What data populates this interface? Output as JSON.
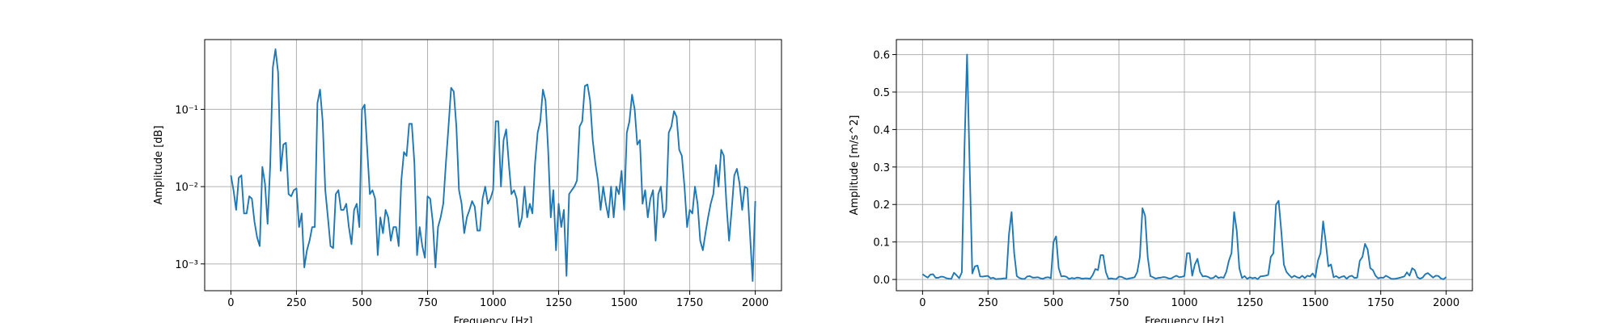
{
  "chart_data": [
    {
      "type": "line",
      "xlabel": "Frequency [Hz]",
      "ylabel": "Amplitude [dB]",
      "log_y": true,
      "grid": true,
      "xlim": [
        -100,
        2100
      ],
      "xticks": [
        0,
        250,
        500,
        750,
        1000,
        1250,
        1500,
        1750,
        2000
      ],
      "ylim": [
        0.00045,
        0.8
      ],
      "yticks": [
        {
          "value": 0.001,
          "label": "10⁻³"
        },
        {
          "value": 0.01,
          "label": "10⁻²"
        },
        {
          "value": 0.1,
          "label": "10⁻¹"
        }
      ],
      "x": [
        0,
        10,
        20,
        30,
        40,
        50,
        60,
        70,
        80,
        90,
        100,
        110,
        120,
        130,
        140,
        150,
        160,
        170,
        180,
        190,
        200,
        210,
        220,
        230,
        240,
        250,
        260,
        270,
        280,
        290,
        300,
        310,
        320,
        330,
        340,
        350,
        360,
        370,
        380,
        390,
        400,
        410,
        420,
        430,
        440,
        450,
        460,
        470,
        480,
        490,
        500,
        510,
        520,
        530,
        540,
        550,
        560,
        570,
        580,
        590,
        600,
        610,
        620,
        630,
        640,
        650,
        660,
        670,
        680,
        690,
        700,
        710,
        720,
        730,
        740,
        750,
        760,
        770,
        780,
        790,
        800,
        810,
        820,
        830,
        840,
        850,
        860,
        870,
        880,
        890,
        900,
        910,
        920,
        930,
        940,
        950,
        960,
        970,
        980,
        990,
        1000,
        1010,
        1020,
        1030,
        1040,
        1050,
        1060,
        1070,
        1080,
        1090,
        1100,
        1110,
        1120,
        1130,
        1140,
        1150,
        1160,
        1170,
        1180,
        1190,
        1200,
        1210,
        1220,
        1230,
        1240,
        1250,
        1260,
        1270,
        1280,
        1290,
        1300,
        1310,
        1320,
        1330,
        1340,
        1350,
        1360,
        1370,
        1380,
        1390,
        1400,
        1410,
        1420,
        1430,
        1440,
        1450,
        1460,
        1470,
        1480,
        1490,
        1500,
        1510,
        1520,
        1530,
        1540,
        1550,
        1560,
        1570,
        1580,
        1590,
        1600,
        1610,
        1620,
        1630,
        1640,
        1650,
        1660,
        1670,
        1680,
        1690,
        1700,
        1710,
        1720,
        1730,
        1740,
        1750,
        1760,
        1770,
        1780,
        1790,
        1800,
        1810,
        1820,
        1830,
        1840,
        1850,
        1860,
        1870,
        1880,
        1890,
        1900,
        1910,
        1920,
        1930,
        1940,
        1950,
        1960,
        1970,
        1980,
        1990,
        2000
      ],
      "series": [
        {
          "color": "#1f77b4",
          "values": [
            0.014,
            0.009,
            0.005,
            0.013,
            0.014,
            0.0045,
            0.0045,
            0.0075,
            0.007,
            0.0035,
            0.0022,
            0.0017,
            0.018,
            0.011,
            0.0033,
            0.019,
            0.35,
            0.6,
            0.3,
            0.016,
            0.035,
            0.037,
            0.008,
            0.0075,
            0.009,
            0.0095,
            0.003,
            0.0045,
            0.0009,
            0.0015,
            0.002,
            0.003,
            0.003,
            0.12,
            0.18,
            0.07,
            0.009,
            0.004,
            0.0017,
            0.0016,
            0.008,
            0.009,
            0.005,
            0.005,
            0.006,
            0.003,
            0.0018,
            0.005,
            0.006,
            0.003,
            0.1,
            0.115,
            0.03,
            0.008,
            0.009,
            0.007,
            0.0013,
            0.004,
            0.0025,
            0.005,
            0.004,
            0.002,
            0.003,
            0.003,
            0.0017,
            0.012,
            0.028,
            0.025,
            0.065,
            0.065,
            0.02,
            0.0013,
            0.003,
            0.0017,
            0.0012,
            0.0075,
            0.007,
            0.0035,
            0.0009,
            0.003,
            0.004,
            0.006,
            0.02,
            0.06,
            0.19,
            0.17,
            0.06,
            0.009,
            0.006,
            0.0025,
            0.004,
            0.005,
            0.0065,
            0.0055,
            0.0027,
            0.0027,
            0.007,
            0.01,
            0.006,
            0.007,
            0.009,
            0.07,
            0.07,
            0.01,
            0.04,
            0.055,
            0.02,
            0.008,
            0.009,
            0.007,
            0.003,
            0.004,
            0.01,
            0.004,
            0.006,
            0.0045,
            0.02,
            0.05,
            0.07,
            0.18,
            0.13,
            0.03,
            0.004,
            0.009,
            0.0015,
            0.006,
            0.003,
            0.005,
            0.0007,
            0.008,
            0.009,
            0.01,
            0.012,
            0.06,
            0.07,
            0.2,
            0.21,
            0.13,
            0.04,
            0.02,
            0.012,
            0.005,
            0.01,
            0.006,
            0.004,
            0.01,
            0.004,
            0.01,
            0.008,
            0.016,
            0.005,
            0.05,
            0.07,
            0.155,
            0.1,
            0.035,
            0.04,
            0.006,
            0.009,
            0.004,
            0.007,
            0.009,
            0.002,
            0.008,
            0.01,
            0.004,
            0.005,
            0.05,
            0.06,
            0.095,
            0.08,
            0.03,
            0.025,
            0.01,
            0.003,
            0.005,
            0.0045,
            0.01,
            0.006,
            0.002,
            0.0015,
            0.0025,
            0.004,
            0.006,
            0.008,
            0.019,
            0.01,
            0.03,
            0.025,
            0.006,
            0.002,
            0.005,
            0.014,
            0.017,
            0.011,
            0.005,
            0.01,
            0.0095,
            0.0024,
            0.0006,
            0.0065
          ]
        }
      ]
    },
    {
      "type": "line",
      "xlabel": "Frequency [Hz]",
      "ylabel": "Amplitude [m/s^2]",
      "log_y": false,
      "grid": true,
      "xlim": [
        -100,
        2100
      ],
      "xticks": [
        0,
        250,
        500,
        750,
        1000,
        1250,
        1500,
        1750,
        2000
      ],
      "ylim": [
        -0.03,
        0.64
      ],
      "yticks": [
        {
          "value": 0,
          "label": "0.0"
        },
        0.1,
        0.2,
        0.3,
        0.4,
        0.5,
        0.6
      ],
      "x": [
        0,
        10,
        20,
        30,
        40,
        50,
        60,
        70,
        80,
        90,
        100,
        110,
        120,
        130,
        140,
        150,
        160,
        170,
        180,
        190,
        200,
        210,
        220,
        230,
        240,
        250,
        260,
        270,
        280,
        290,
        300,
        310,
        320,
        330,
        340,
        350,
        360,
        370,
        380,
        390,
        400,
        410,
        420,
        430,
        440,
        450,
        460,
        470,
        480,
        490,
        500,
        510,
        520,
        530,
        540,
        550,
        560,
        570,
        580,
        590,
        600,
        610,
        620,
        630,
        640,
        650,
        660,
        670,
        680,
        690,
        700,
        710,
        720,
        730,
        740,
        750,
        760,
        770,
        780,
        790,
        800,
        810,
        820,
        830,
        840,
        850,
        860,
        870,
        880,
        890,
        900,
        910,
        920,
        930,
        940,
        950,
        960,
        970,
        980,
        990,
        1000,
        1010,
        1020,
        1030,
        1040,
        1050,
        1060,
        1070,
        1080,
        1090,
        1100,
        1110,
        1120,
        1130,
        1140,
        1150,
        1160,
        1170,
        1180,
        1190,
        1200,
        1210,
        1220,
        1230,
        1240,
        1250,
        1260,
        1270,
        1280,
        1290,
        1300,
        1310,
        1320,
        1330,
        1340,
        1350,
        1360,
        1370,
        1380,
        1390,
        1400,
        1410,
        1420,
        1430,
        1440,
        1450,
        1460,
        1470,
        1480,
        1490,
        1500,
        1510,
        1520,
        1530,
        1540,
        1550,
        1560,
        1570,
        1580,
        1590,
        1600,
        1610,
        1620,
        1630,
        1640,
        1650,
        1660,
        1670,
        1680,
        1690,
        1700,
        1710,
        1720,
        1730,
        1740,
        1750,
        1760,
        1770,
        1780,
        1790,
        1800,
        1810,
        1820,
        1830,
        1840,
        1850,
        1860,
        1870,
        1880,
        1890,
        1900,
        1910,
        1920,
        1930,
        1940,
        1950,
        1960,
        1970,
        1980,
        1990,
        2000
      ],
      "series": [
        {
          "color": "#1f77b4",
          "values": [
            0.014,
            0.009,
            0.005,
            0.013,
            0.014,
            0.0045,
            0.0045,
            0.0075,
            0.007,
            0.0035,
            0.0022,
            0.0017,
            0.018,
            0.011,
            0.0033,
            0.019,
            0.35,
            0.6,
            0.3,
            0.016,
            0.035,
            0.037,
            0.008,
            0.0075,
            0.009,
            0.0095,
            0.003,
            0.0045,
            0.0009,
            0.0015,
            0.002,
            0.003,
            0.003,
            0.12,
            0.18,
            0.07,
            0.009,
            0.004,
            0.0017,
            0.0016,
            0.008,
            0.009,
            0.005,
            0.005,
            0.006,
            0.003,
            0.0018,
            0.005,
            0.006,
            0.003,
            0.1,
            0.115,
            0.03,
            0.008,
            0.009,
            0.007,
            0.0013,
            0.004,
            0.0025,
            0.005,
            0.004,
            0.002,
            0.003,
            0.003,
            0.0017,
            0.012,
            0.028,
            0.025,
            0.065,
            0.065,
            0.02,
            0.0013,
            0.003,
            0.0017,
            0.0012,
            0.0075,
            0.007,
            0.0035,
            0.0009,
            0.003,
            0.004,
            0.006,
            0.02,
            0.06,
            0.19,
            0.17,
            0.06,
            0.009,
            0.006,
            0.0025,
            0.004,
            0.005,
            0.0065,
            0.0055,
            0.0027,
            0.0027,
            0.007,
            0.01,
            0.006,
            0.007,
            0.009,
            0.07,
            0.07,
            0.01,
            0.04,
            0.055,
            0.02,
            0.008,
            0.009,
            0.007,
            0.003,
            0.004,
            0.01,
            0.004,
            0.006,
            0.0045,
            0.02,
            0.05,
            0.07,
            0.18,
            0.13,
            0.03,
            0.004,
            0.009,
            0.0015,
            0.006,
            0.003,
            0.005,
            0.0007,
            0.008,
            0.009,
            0.01,
            0.012,
            0.06,
            0.07,
            0.2,
            0.21,
            0.13,
            0.04,
            0.02,
            0.012,
            0.005,
            0.01,
            0.006,
            0.004,
            0.01,
            0.004,
            0.01,
            0.008,
            0.016,
            0.005,
            0.05,
            0.07,
            0.155,
            0.1,
            0.035,
            0.04,
            0.006,
            0.009,
            0.004,
            0.007,
            0.009,
            0.002,
            0.008,
            0.01,
            0.004,
            0.005,
            0.05,
            0.06,
            0.095,
            0.08,
            0.03,
            0.025,
            0.01,
            0.003,
            0.005,
            0.0045,
            0.01,
            0.006,
            0.002,
            0.0015,
            0.0025,
            0.004,
            0.006,
            0.008,
            0.019,
            0.01,
            0.03,
            0.025,
            0.006,
            0.002,
            0.005,
            0.014,
            0.017,
            0.011,
            0.005,
            0.01,
            0.0095,
            0.0024,
            0.0006,
            0.0065
          ]
        }
      ]
    }
  ]
}
